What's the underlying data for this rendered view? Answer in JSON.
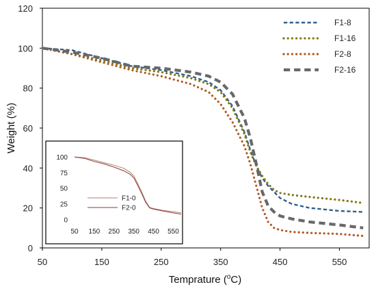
{
  "chart_data": [
    {
      "type": "line",
      "xlabel": "Temprature (",
      "xlabel_sup": "o",
      "xlabel_tail": "C)",
      "ylabel": "Weight (%)",
      "xlim": [
        50,
        600
      ],
      "ylim": [
        0,
        120
      ],
      "x_ticks": [
        50,
        150,
        250,
        350,
        450,
        550
      ],
      "y_ticks": [
        0,
        20,
        40,
        60,
        80,
        100,
        120
      ],
      "grid": false,
      "legend_position": "top-right",
      "series": [
        {
          "name": "F1-8",
          "color": "#2e5f8f",
          "style": "dashed",
          "x": [
            50,
            100,
            150,
            200,
            250,
            300,
            330,
            350,
            370,
            390,
            400,
            410,
            420,
            430,
            440,
            450,
            470,
            500,
            550,
            590
          ],
          "y": [
            100,
            99,
            95,
            91,
            89,
            86,
            83,
            79,
            71,
            58,
            49,
            41,
            35,
            31,
            28,
            25,
            22,
            20,
            18.5,
            18
          ]
        },
        {
          "name": "F1-16",
          "color": "#807a14",
          "style": "dotted",
          "x": [
            50,
            100,
            150,
            200,
            250,
            300,
            330,
            350,
            370,
            390,
            400,
            410,
            420,
            430,
            440,
            450,
            470,
            500,
            550,
            590
          ],
          "y": [
            100,
            97,
            94,
            90,
            88,
            85,
            82,
            78,
            70,
            57,
            48,
            41,
            36,
            32,
            29,
            27.5,
            26.5,
            25.5,
            24,
            22.5
          ]
        },
        {
          "name": "F2-8",
          "color": "#b05a22",
          "style": "dotted",
          "x": [
            50,
            100,
            150,
            200,
            250,
            300,
            330,
            350,
            370,
            390,
            400,
            410,
            420,
            430,
            440,
            450,
            470,
            500,
            550,
            590
          ],
          "y": [
            100,
            97,
            93,
            89,
            86,
            82,
            78,
            72,
            63,
            51,
            42,
            31,
            20,
            13,
            10,
            9,
            8,
            7.5,
            7,
            6
          ]
        },
        {
          "name": "F2-16",
          "color": "#686868",
          "style": "dashed",
          "x": [
            50,
            100,
            150,
            200,
            250,
            300,
            330,
            350,
            370,
            390,
            400,
            410,
            420,
            430,
            440,
            450,
            470,
            500,
            550,
            590
          ],
          "y": [
            100,
            98,
            95,
            91,
            90,
            88,
            86,
            83,
            77,
            65,
            55,
            42,
            28,
            21,
            18,
            16,
            14.5,
            13,
            11.5,
            10
          ]
        }
      ]
    },
    {
      "type": "line",
      "inset": true,
      "xlim": [
        50,
        590
      ],
      "ylim": [
        0,
        120
      ],
      "x_ticks": [
        50,
        150,
        250,
        350,
        450,
        550
      ],
      "y_ticks": [
        0,
        25,
        50,
        75,
        100
      ],
      "grid": false,
      "legend_position": "bottom-left",
      "series": [
        {
          "name": "F1-0",
          "color": "#b08070",
          "x": [
            50,
            100,
            150,
            200,
            250,
            300,
            330,
            350,
            370,
            390,
            410,
            430,
            450,
            500,
            550,
            590
          ],
          "y": [
            100,
            99,
            95,
            91,
            87,
            82,
            76,
            70,
            58,
            45,
            30,
            20,
            18,
            15,
            13,
            11
          ]
        },
        {
          "name": "F2-0",
          "color": "#8b3a3a",
          "x": [
            50,
            100,
            150,
            200,
            250,
            300,
            330,
            350,
            370,
            390,
            410,
            430,
            450,
            500,
            550,
            590
          ],
          "y": [
            100,
            98,
            93,
            89,
            84,
            78,
            73,
            67,
            55,
            42,
            28,
            19,
            17,
            14,
            11,
            9
          ]
        }
      ]
    }
  ]
}
